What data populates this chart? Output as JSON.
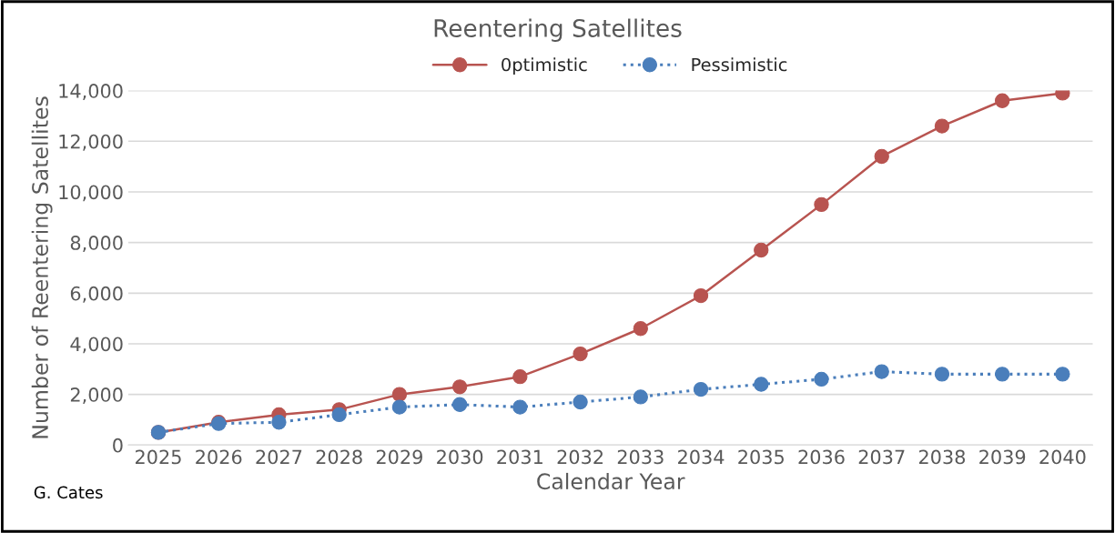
{
  "chart_data": {
    "type": "line",
    "title": "Reentering Satellites",
    "xlabel": "Calendar Year",
    "ylabel": "Number of Reentering Satellites",
    "categories": [
      "2025",
      "2026",
      "2027",
      "2028",
      "2029",
      "2030",
      "2031",
      "2032",
      "2033",
      "2034",
      "2035",
      "2036",
      "2037",
      "2038",
      "2039",
      "2040"
    ],
    "series": [
      {
        "name": "0ptimistic",
        "color": "#b85450",
        "line_style": "solid",
        "values": [
          500,
          900,
          1200,
          1400,
          2000,
          2300,
          2700,
          3600,
          4600,
          5900,
          7700,
          9500,
          11400,
          12600,
          13600,
          13900
        ]
      },
      {
        "name": "Pessimistic",
        "color": "#4a7ebb",
        "line_style": "dotted",
        "values": [
          500,
          850,
          900,
          1200,
          1500,
          1600,
          1500,
          1700,
          1900,
          2200,
          2400,
          2600,
          2900,
          2800,
          2800,
          2800
        ]
      }
    ],
    "ylim": [
      0,
      14000
    ],
    "yticks": [
      {
        "value": 0,
        "label": "0"
      },
      {
        "value": 2000,
        "label": "2,000"
      },
      {
        "value": 4000,
        "label": "4,000"
      },
      {
        "value": 6000,
        "label": "6,000"
      },
      {
        "value": 8000,
        "label": "8,000"
      },
      {
        "value": 10000,
        "label": "10,000"
      },
      {
        "value": 12000,
        "label": "12,000"
      },
      {
        "value": 14000,
        "label": "14,000"
      }
    ],
    "marker": "circle",
    "grid": "y",
    "legend": "top",
    "annotations": [
      "G. Cates"
    ]
  }
}
